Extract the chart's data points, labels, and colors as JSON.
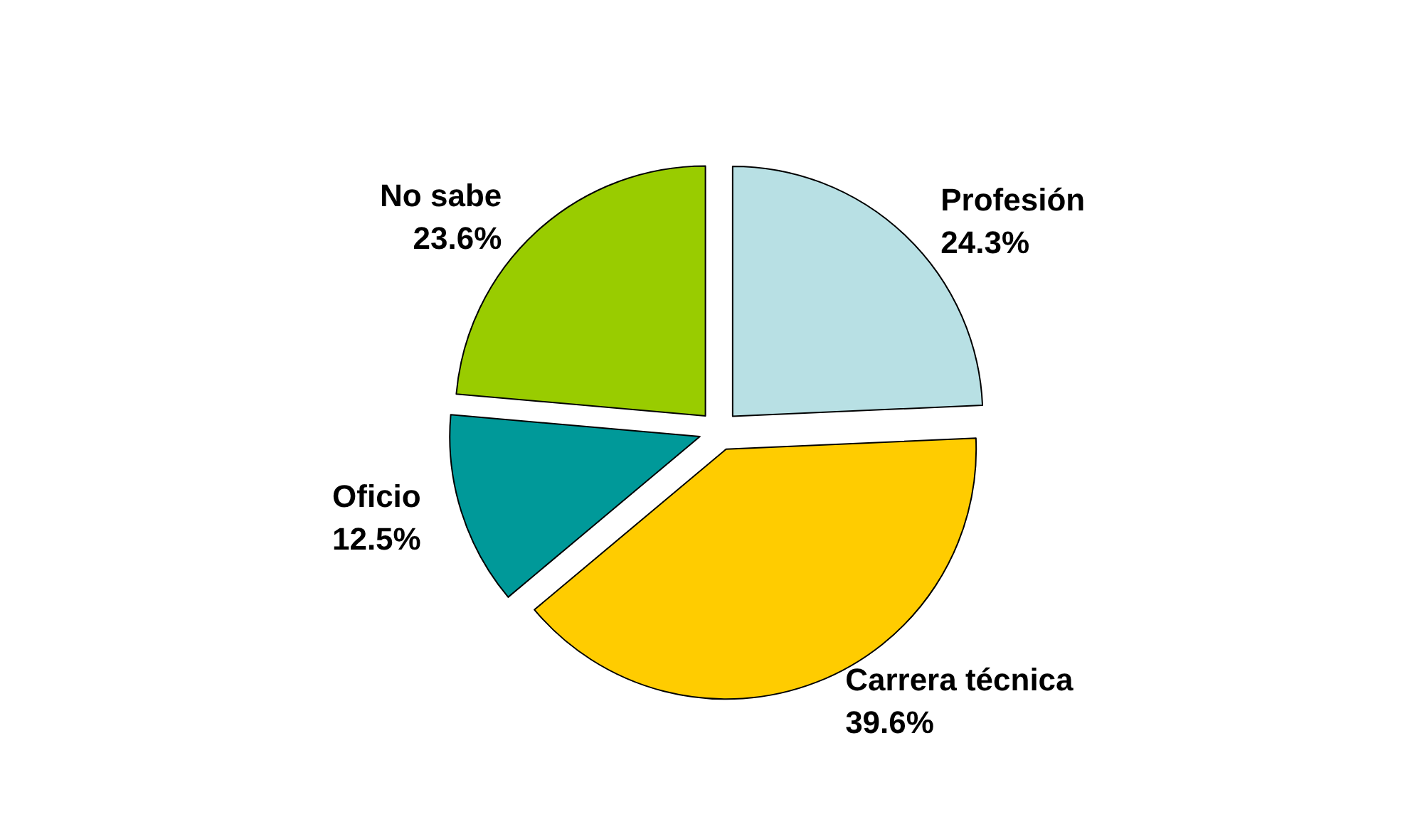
{
  "chart_data": {
    "type": "pie",
    "categories": [
      "Profesión",
      "Carrera técnica",
      "Oficio",
      "No sabe"
    ],
    "values": [
      24.3,
      39.6,
      12.5,
      23.6
    ],
    "value_labels": [
      "24.3%",
      "39.6%",
      "12.5%",
      "23.6%"
    ],
    "colors": [
      "#b8e0e4",
      "#ffcc00",
      "#009999",
      "#99cc00"
    ],
    "legend": false
  }
}
